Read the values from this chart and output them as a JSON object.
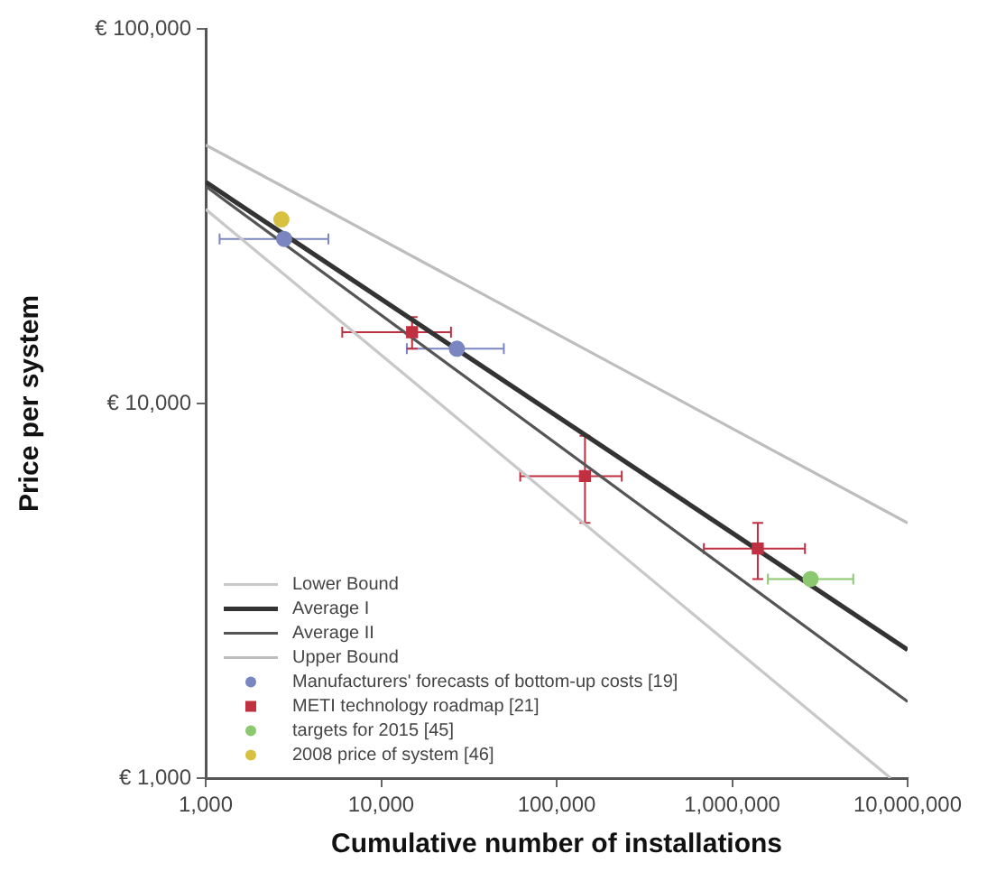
{
  "chart_data": {
    "type": "line",
    "xlabel": "Cumulative number of installations",
    "ylabel": "Price per system",
    "log": "xy",
    "grid": false,
    "legend": "bottom left",
    "xlim": [
      1000,
      10000000
    ],
    "xticks": [
      {
        "value": 1000,
        "label": "1,000"
      },
      {
        "value": 10000,
        "label": "10,000"
      },
      {
        "value": 100000,
        "label": "100,000"
      },
      {
        "value": 1000000,
        "label": "1,000,000"
      },
      {
        "value": 10000000,
        "label": "10,000,000"
      }
    ],
    "ylim": [
      1000,
      100000
    ],
    "yticks": [
      {
        "value": 1000,
        "label": "€ 1,000"
      },
      {
        "value": 10000,
        "label": "€ 10,000"
      },
      {
        "value": 100000,
        "label": "€ 100,000"
      }
    ],
    "series": [
      {
        "name": "Lower Bound",
        "color": "#c8c8c8",
        "marker": "none",
        "line_style": "solid",
        "x": [
          1000,
          8000000
        ],
        "values": [
          33000,
          1000
        ]
      },
      {
        "name": "Average I",
        "color": "#333333",
        "marker": "none",
        "line_style": "solid",
        "x": [
          1000,
          10000000
        ],
        "values": [
          39000,
          2200
        ]
      },
      {
        "name": "Average II",
        "color": "#555555",
        "marker": "none",
        "line_style": "solid",
        "x": [
          1000,
          10000000
        ],
        "values": [
          38000,
          1600
        ]
      },
      {
        "name": "Upper Bound",
        "color": "#bdbdbd",
        "marker": "none",
        "line_style": "solid",
        "x": [
          1000,
          10000000
        ],
        "values": [
          49000,
          4800
        ]
      },
      {
        "name": "Manufacturers' forecasts of bottom-up costs [19]",
        "type": "scatter",
        "color": "#7a86c0",
        "marker": "circle",
        "x": [
          2800,
          27000
        ],
        "values": [
          27500,
          14000
        ],
        "xerrors": [
          [
            1200,
            5000
          ],
          [
            14000,
            50000
          ]
        ]
      },
      {
        "name": "METI technology roadmap [21]",
        "type": "scatter",
        "color": "#c03040",
        "marker": "square",
        "x": [
          15000,
          145000,
          1400000
        ],
        "values": [
          15500,
          6400,
          4100
        ],
        "xerrors": [
          [
            6000,
            25000
          ],
          [
            62000,
            235000
          ],
          [
            690000,
            2600000
          ]
        ],
        "errors": [
          [
            14000,
            17000
          ],
          [
            4800,
            8200
          ],
          [
            3400,
            4800
          ]
        ]
      },
      {
        "name": "targets for 2015 [45]",
        "type": "scatter",
        "color": "#8cc870",
        "marker": "circle",
        "x": [
          2800000
        ],
        "values": [
          3400
        ],
        "xerrors": [
          [
            1600000,
            4900000
          ]
        ]
      },
      {
        "name": "2008 price of system [46]",
        "type": "scatter",
        "color": "#d8c040",
        "marker": "circle",
        "x": [
          2700
        ],
        "values": [
          31000
        ]
      }
    ]
  }
}
